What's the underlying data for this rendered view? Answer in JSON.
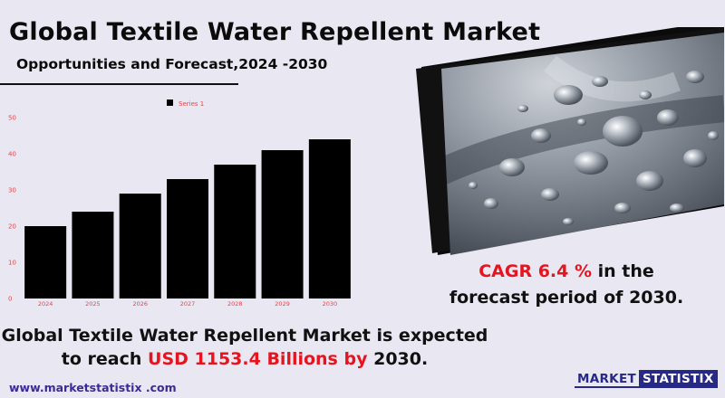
{
  "header": {
    "title": "Global Textile Water Repellent Market",
    "subtitle": "Opportunities and Forecast,2024 -2030"
  },
  "chart_data": {
    "type": "bar",
    "categories": [
      "2024",
      "2025",
      "2026",
      "2027",
      "2028",
      "2029",
      "2030"
    ],
    "series": [
      {
        "name": "Series 1",
        "values": [
          20,
          24,
          29,
          33,
          37,
          41,
          44
        ]
      }
    ],
    "ylim": [
      0,
      50
    ],
    "yticks": [
      0,
      10,
      20,
      30,
      40,
      50
    ],
    "legend": "top-center",
    "grid": false,
    "bar_color": "#000000",
    "tick_color": "#e0474c"
  },
  "cagr": {
    "prefix": "CAGR  6.4 %",
    "suffix": " in the",
    "line2": "forecast period of 2030."
  },
  "expectation": {
    "line1": "Global Textile Water Repellent Market is expected",
    "line2_start": "to reach ",
    "highlight": "USD 1153.4  Billions by",
    "line2_end": " 2030."
  },
  "footer": {
    "website": "www.marketstatistix .com",
    "logo_part1": "MARKET",
    "logo_part2": "STATISTIX"
  },
  "colors": {
    "accent_red": "#e5141e",
    "brand_blue": "#262a86",
    "background": "#e9e7f1"
  }
}
